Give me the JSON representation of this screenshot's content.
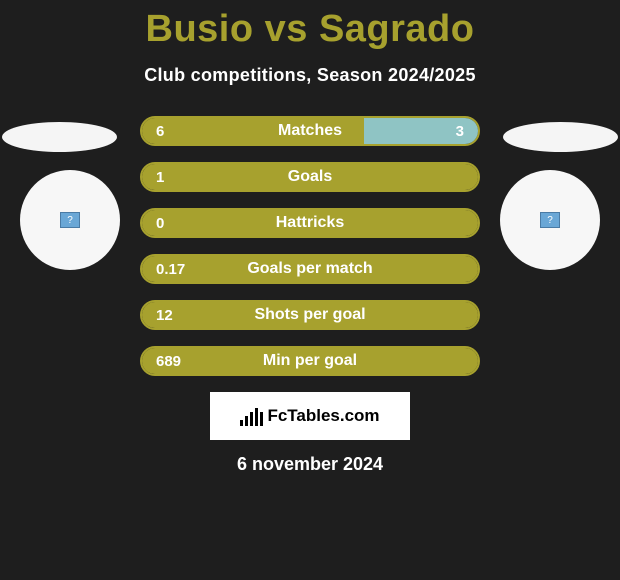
{
  "title": "Busio vs Sagrado",
  "subtitle": "Club competitions, Season 2024/2025",
  "date": "6 november 2024",
  "brand": "FcTables.com",
  "colors": {
    "accent": "#a7a12e",
    "right_bar": "#8fc4c4",
    "background": "#1e1e1e",
    "text": "#ffffff"
  },
  "rows": [
    {
      "label": "Matches",
      "left": "6",
      "right": "3",
      "left_pct": 66,
      "right_pct": 34
    },
    {
      "label": "Goals",
      "left": "1",
      "right": "",
      "left_pct": 100,
      "right_pct": 0
    },
    {
      "label": "Hattricks",
      "left": "0",
      "right": "",
      "left_pct": 100,
      "right_pct": 0
    },
    {
      "label": "Goals per match",
      "left": "0.17",
      "right": "",
      "left_pct": 100,
      "right_pct": 0
    },
    {
      "label": "Shots per goal",
      "left": "12",
      "right": "",
      "left_pct": 100,
      "right_pct": 0
    },
    {
      "label": "Min per goal",
      "left": "689",
      "right": "",
      "left_pct": 100,
      "right_pct": 0
    }
  ],
  "brand_bars_heights": [
    6,
    10,
    14,
    18,
    14
  ],
  "avatar_icon": "?"
}
